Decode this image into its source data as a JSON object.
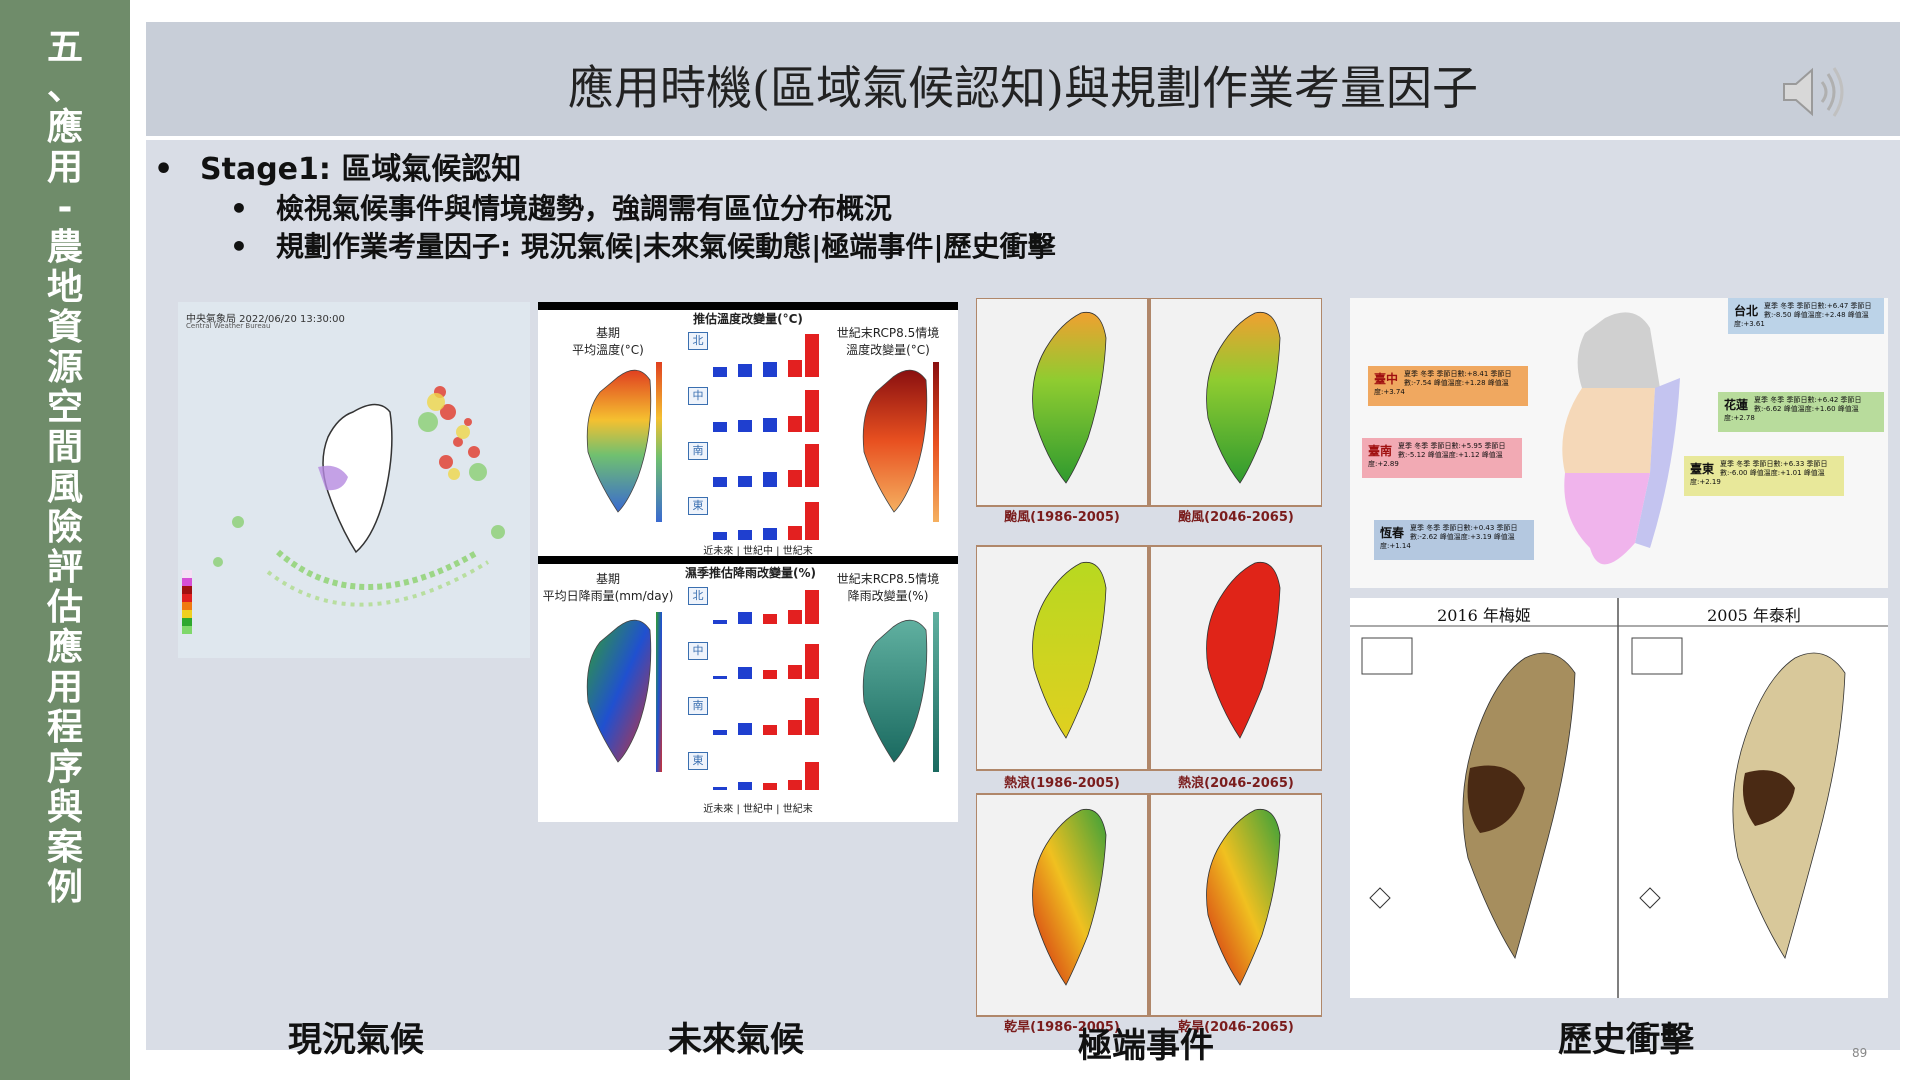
{
  "sidebar": {
    "chars": [
      "五",
      "、",
      "應",
      "用",
      "-",
      "農",
      "地",
      "資",
      "源",
      "空",
      "間",
      "風",
      "險",
      "評",
      "估",
      "應",
      "用",
      "程",
      "序",
      "與",
      "案",
      "例"
    ]
  },
  "header": {
    "title": "應用時機(區域氣候認知)與規劃作業考量因子"
  },
  "bullets": {
    "stage": "Stage1: 區域氣候認知",
    "sub1": "檢視氣候事件與情境趨勢，強調需有區位分布概況",
    "sub2": "規劃作業考量因子: 現況氣候|未來氣候動態|極端事件|歷史衝擊",
    "bullet_char": "•"
  },
  "captions": {
    "current": "現況氣候",
    "future": "未來氣候",
    "extreme": "極端事件",
    "history": "歷史衝擊"
  },
  "radar": {
    "agency": "中央氣象局 2022/06/20 13:30:00",
    "agency_en": "Central Weather Bureau"
  },
  "future": {
    "temp_base": "基期\n平均溫度(°C)",
    "temp_change_title": "推估溫度改變量(°C)",
    "temp_end": "世紀末RCP8.5情境\n溫度改變量(°C)",
    "rain_base": "基期\n平均日降雨量(mm/day)",
    "rain_change_title": "濕季推估降雨改變量(%)",
    "rain_end": "世紀末RCP8.5情境\n降雨改變量(%)",
    "regions": [
      "北",
      "中",
      "南",
      "東"
    ],
    "periods": "近未來 | 世紀中 | 世紀末",
    "colors": {
      "blue": "#1f3fcf",
      "red": "#e32020"
    }
  },
  "extreme": {
    "labels": [
      "颱風(1986-2005)",
      "颱風(2046-2065)",
      "熱浪(1986-2005)",
      "熱浪(2046-2065)",
      "乾旱(1986-2005)",
      "乾旱(2046-2065)"
    ]
  },
  "history": {
    "callouts": [
      {
        "city": "台北",
        "text": "夏季 冬季 季節日數:+6.47 季節日數:-8.50 峰值溫度:+2.48 峰值溫度:+3.61"
      },
      {
        "city": "臺中",
        "text": "夏季 冬季 季節日數:+8.41 季節日數:-7.54 峰值溫度:+1.28 峰值溫度:+3.74"
      },
      {
        "city": "花蓮",
        "text": "夏季 冬季 季節日數:+6.42 季節日數:-6.62 峰值溫度:+1.60 峰值溫度:+2.78"
      },
      {
        "city": "臺南",
        "text": "夏季 冬季 季節日數:+5.95 季節日數:-5.12 峰值溫度:+1.12 峰值溫度:+2.89"
      },
      {
        "city": "臺東",
        "text": "夏季 冬季 季節日數:+6.33 季節日數:-6.00 峰值溫度:+1.01 峰值溫度:+2.19"
      },
      {
        "city": "恆春",
        "text": "夏季 冬季 季節日數:+0.43 季節日數:-2.62 峰值溫度:+3.19 峰值溫度:+1.14"
      }
    ],
    "typhoon1": "2016 年梅姬",
    "typhoon2": "2005 年泰利"
  },
  "page_number": "89"
}
